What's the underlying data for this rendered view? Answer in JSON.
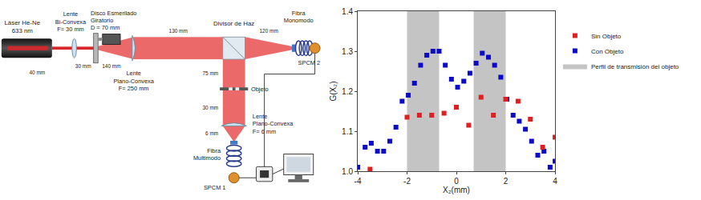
{
  "diagram": {
    "laser": [
      "Láser He-Ne",
      "633 nm"
    ],
    "lens_1": [
      "Lente",
      "Bi-Convexa",
      "F= 30 mm"
    ],
    "disk": [
      "Disco Esmerilado",
      "Giratorio",
      "D = 70 mm"
    ],
    "lens_2": [
      "Lente",
      "Plano-Convexa",
      "F= 250 mm"
    ],
    "beam_splitter": [
      "Divisor de Haz"
    ],
    "single_mode_fiber": [
      "Fibra",
      "Monomodo"
    ],
    "detector_2": [
      "SPCM 2"
    ],
    "object": [
      "Objeto"
    ],
    "lens_3": [
      "Lente",
      "Plano-Convexa",
      "F= 6 mm"
    ],
    "multimode_fiber": [
      "Fibra",
      "Multimodo"
    ],
    "detector_1": [
      "SPCM 1"
    ],
    "distances": {
      "laser_lens1": "40 mm",
      "lens1_disk": "30 mm",
      "disk_lens2": "140 mm",
      "lens2_splitter": "130 mm",
      "splitter_fiber2": "120 mm",
      "splitter_object": "75 mm",
      "object_lens3": "30 mm",
      "lens3_fiber1": "6 mm"
    }
  },
  "chart_data": {
    "type": "scatter",
    "xlabel": "X₂(mm)",
    "ylabel": "G(X₂)",
    "xlim": [
      -4,
      4
    ],
    "xticks": [
      -4,
      -2,
      0,
      2,
      4
    ],
    "ylim": [
      1.0,
      1.4
    ],
    "yticks": [
      {
        "value": 1.0,
        "label": "1.0"
      },
      {
        "value": 1.1,
        "label": "1.1"
      },
      {
        "value": 1.2,
        "label": "1.2"
      },
      {
        "value": 1.3,
        "label": "1.3"
      },
      {
        "value": 1.4,
        "label": "1.4"
      }
    ],
    "grid": false,
    "legend": "right",
    "series": [
      {
        "name": "Perfil de transmisión del objeto",
        "type": "area",
        "color": "#c4c4c4",
        "regions": [
          [
            -2.0,
            -0.7
          ],
          [
            0.7,
            2.0
          ]
        ]
      },
      {
        "name": "Con Objeto",
        "type": "scatter",
        "marker": "square",
        "color": "#0a0ac8",
        "x": [
          -4.0,
          -3.7,
          -3.45,
          -3.2,
          -2.95,
          -2.7,
          -2.45,
          -2.2,
          -1.95,
          -1.7,
          -1.45,
          -1.2,
          -0.95,
          -0.7,
          -0.45,
          -0.2,
          0.05,
          0.3,
          0.55,
          0.8,
          1.05,
          1.3,
          1.55,
          1.8,
          2.05,
          2.3,
          2.55,
          2.8,
          3.05,
          3.3,
          3.55,
          3.8,
          4.0
        ],
        "values": [
          1.01,
          1.06,
          1.07,
          1.05,
          1.05,
          1.075,
          1.11,
          1.175,
          1.19,
          1.22,
          1.265,
          1.29,
          1.3,
          1.3,
          1.265,
          1.23,
          1.21,
          1.225,
          1.245,
          1.27,
          1.295,
          1.285,
          1.265,
          1.235,
          1.18,
          1.14,
          1.125,
          1.105,
          1.075,
          1.04,
          1.05,
          1.01,
          1.025
        ]
      },
      {
        "name": "Sin Objeto",
        "type": "scatter",
        "marker": "square",
        "color": "#e02020",
        "x": [
          -3.5,
          -2.0,
          -1.5,
          -1.0,
          -0.5,
          0.0,
          0.5,
          1.0,
          1.5,
          2.0,
          2.5,
          3.0,
          3.5,
          4.0
        ],
        "values": [
          1.005,
          1.135,
          1.14,
          1.14,
          1.145,
          1.16,
          1.115,
          1.185,
          1.14,
          1.18,
          1.175,
          1.13,
          1.06,
          1.085
        ]
      }
    ]
  }
}
